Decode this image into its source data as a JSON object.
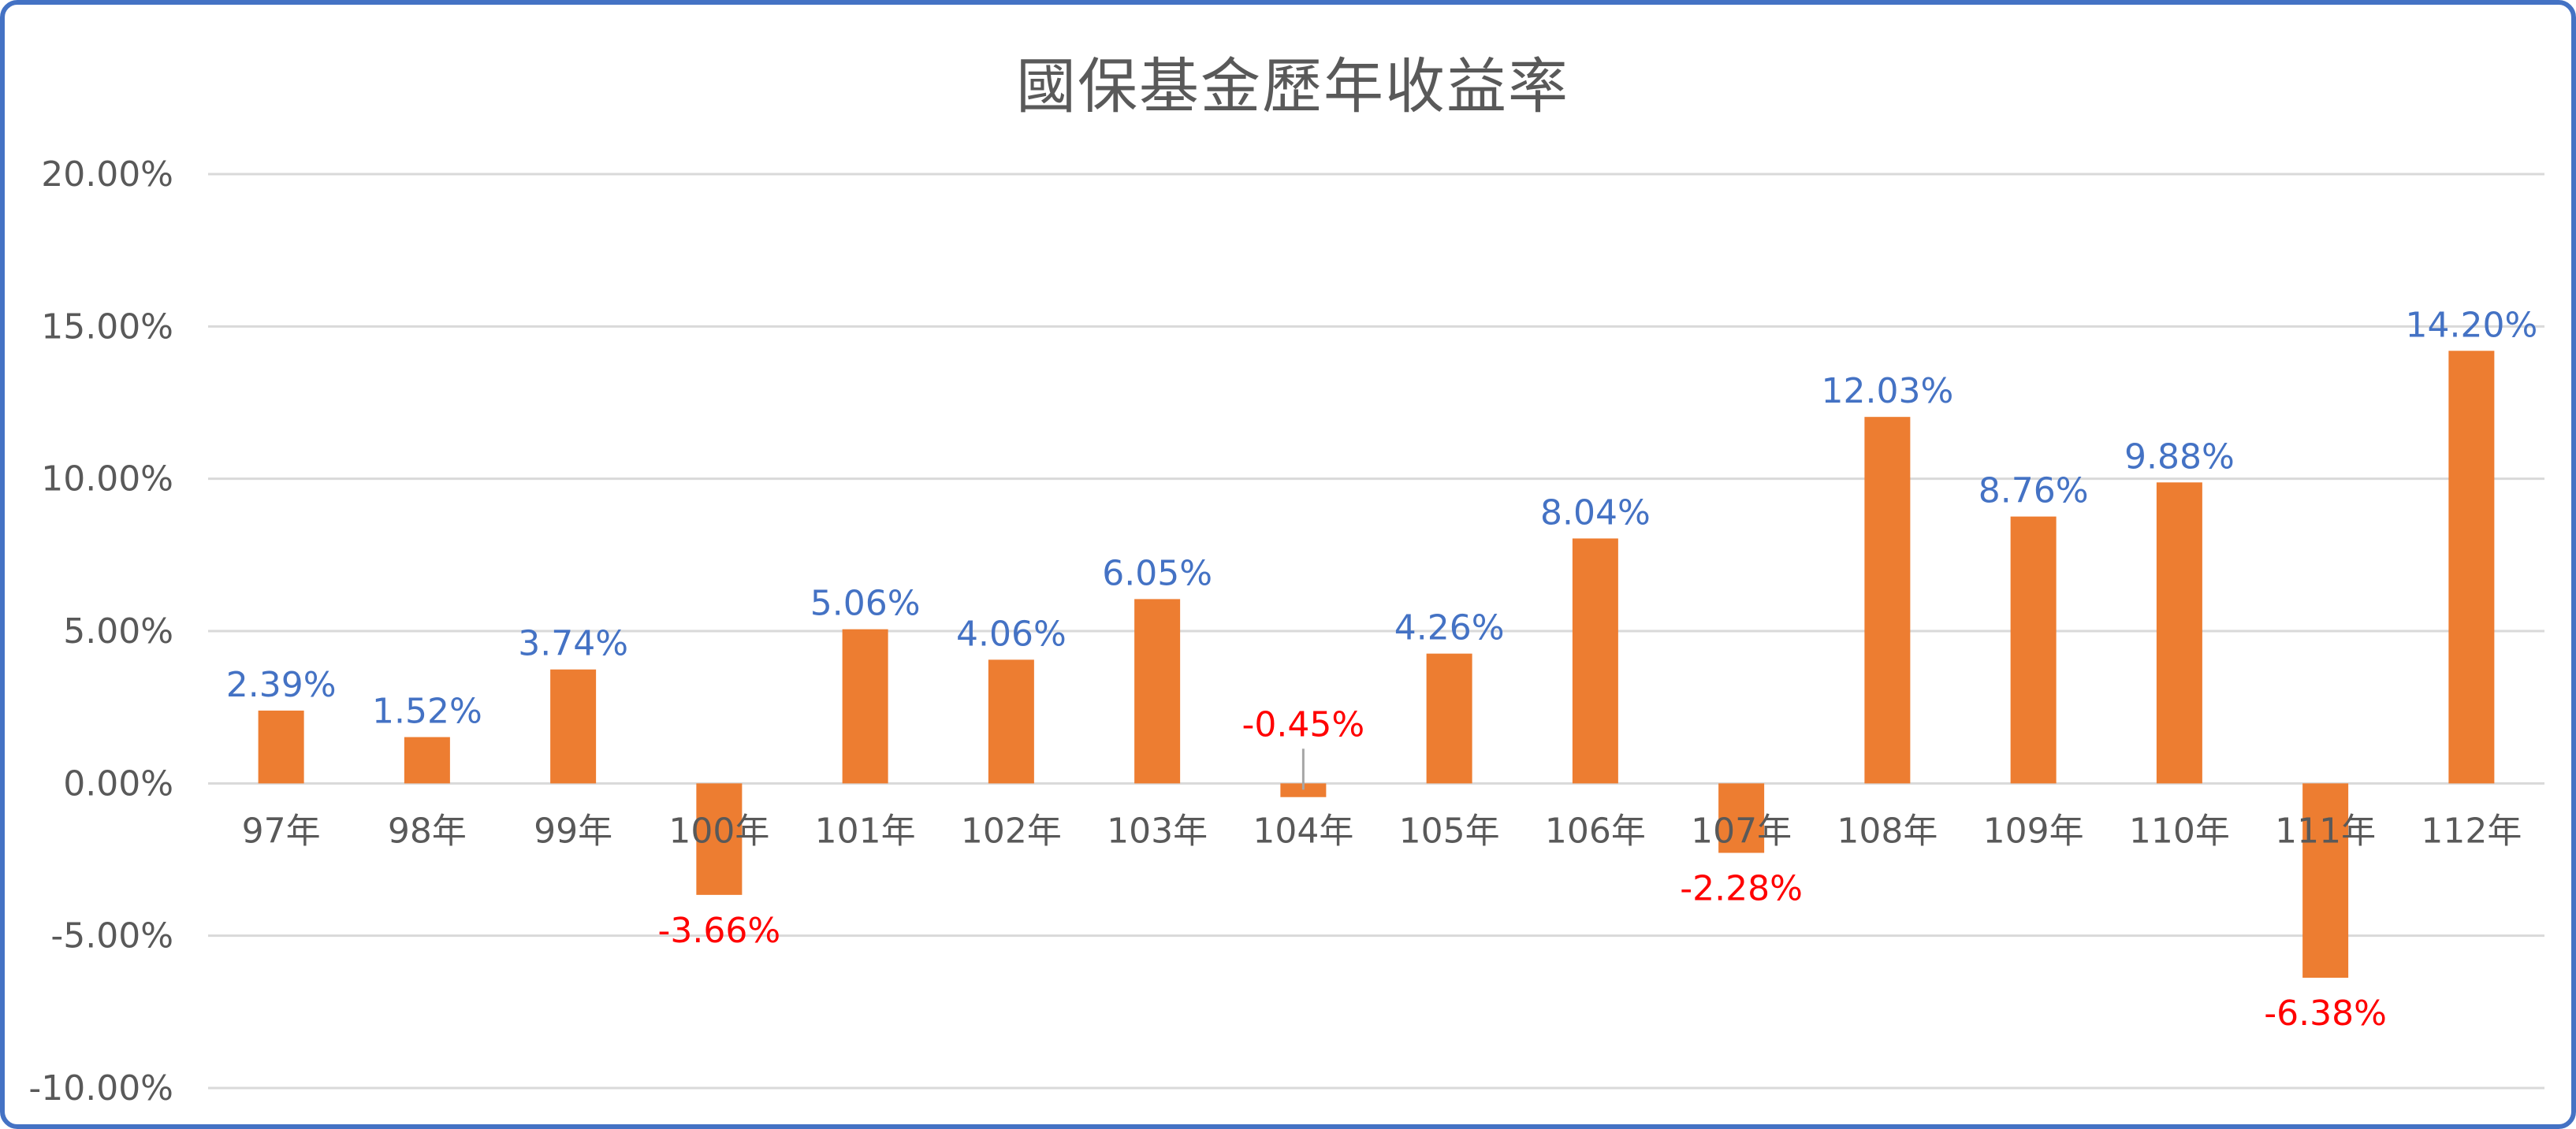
{
  "chart_data": {
    "type": "bar",
    "title": "國保基金歷年收益率",
    "xlabel": "",
    "ylabel": "",
    "categories": [
      "97年",
      "98年",
      "99年",
      "100年",
      "101年",
      "102年",
      "103年",
      "104年",
      "105年",
      "106年",
      "107年",
      "108年",
      "109年",
      "110年",
      "111年",
      "112年"
    ],
    "values": [
      2.39,
      1.52,
      3.74,
      -3.66,
      5.06,
      4.06,
      6.05,
      -0.45,
      4.26,
      8.04,
      -2.28,
      12.03,
      8.76,
      9.88,
      -6.38,
      14.2
    ],
    "data_labels": [
      "2.39%",
      "1.52%",
      "3.74%",
      "-3.66%",
      "5.06%",
      "4.06%",
      "6.05%",
      "-0.45%",
      "4.26%",
      "8.04%",
      "-2.28%",
      "12.03%",
      "8.76%",
      "9.88%",
      "-6.38%",
      "14.20%"
    ],
    "ylim": [
      -10,
      20
    ],
    "yticks": [
      20,
      15,
      10,
      5,
      0,
      -5,
      -10
    ],
    "ytick_labels": [
      "20.00%",
      "15.00%",
      "10.00%",
      "5.00%",
      "0.00%",
      "-5.00%",
      "-10.00%"
    ],
    "grid": true,
    "legend": "none",
    "colors": {
      "bar": "#ED7D31",
      "positive_label": "#4472C4",
      "negative_label": "#FF0000",
      "grid": "#D9D9D9",
      "axis_text": "#595959",
      "border": "#4472C4",
      "leader_line": "#A6A6A6"
    }
  }
}
